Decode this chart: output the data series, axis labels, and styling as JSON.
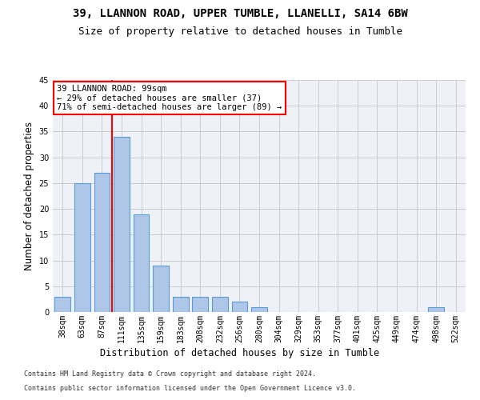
{
  "title1": "39, LLANNON ROAD, UPPER TUMBLE, LLANELLI, SA14 6BW",
  "title2": "Size of property relative to detached houses in Tumble",
  "xlabel": "Distribution of detached houses by size in Tumble",
  "ylabel": "Number of detached properties",
  "footnote1": "Contains HM Land Registry data © Crown copyright and database right 2024.",
  "footnote2": "Contains public sector information licensed under the Open Government Licence v3.0.",
  "bins": [
    "38sqm",
    "63sqm",
    "87sqm",
    "111sqm",
    "135sqm",
    "159sqm",
    "183sqm",
    "208sqm",
    "232sqm",
    "256sqm",
    "280sqm",
    "304sqm",
    "329sqm",
    "353sqm",
    "377sqm",
    "401sqm",
    "425sqm",
    "449sqm",
    "474sqm",
    "498sqm",
    "522sqm"
  ],
  "counts": [
    3,
    25,
    27,
    34,
    19,
    9,
    3,
    3,
    3,
    2,
    1,
    0,
    0,
    0,
    0,
    0,
    0,
    0,
    0,
    1,
    0
  ],
  "bar_color": "#aec6e8",
  "bar_edge_color": "#5b9bd5",
  "red_line_x": 2.5,
  "annotation_text": "39 LLANNON ROAD: 99sqm\n← 29% of detached houses are smaller (37)\n71% of semi-detached houses are larger (89) →",
  "annotation_box_color": "white",
  "annotation_border_color": "red",
  "vline_color": "red",
  "ylim": [
    0,
    45
  ],
  "yticks": [
    0,
    5,
    10,
    15,
    20,
    25,
    30,
    35,
    40,
    45
  ],
  "bg_color": "#eef2f8",
  "grid_color": "#cccccc",
  "title_fontsize": 10,
  "subtitle_fontsize": 9,
  "axis_label_fontsize": 8.5,
  "tick_fontsize": 7,
  "footnote_fontsize": 6
}
